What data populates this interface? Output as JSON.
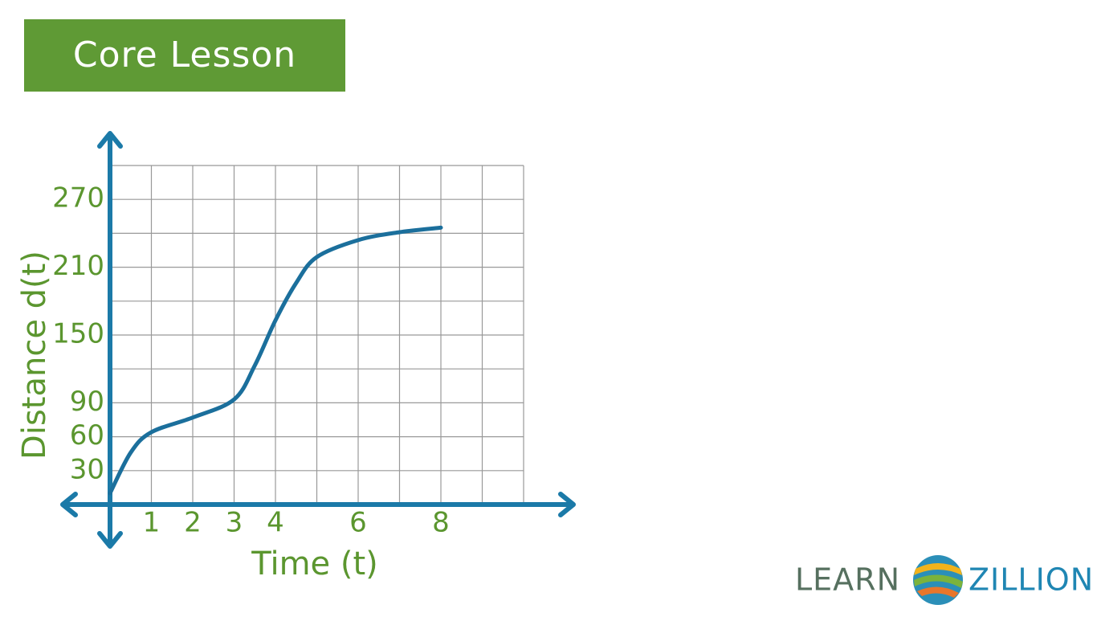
{
  "header": {
    "title": "Core Lesson"
  },
  "chart_data": {
    "type": "line",
    "x_label": "Time (t)",
    "y_label": "Distance d(t)",
    "x": [
      0,
      0.5,
      1,
      2,
      3,
      3.5,
      4,
      4.5,
      5,
      6,
      7,
      8
    ],
    "series": [
      {
        "color": "#1b6f9c",
        "values": [
          10,
          46,
          64,
          77,
          93,
          123,
          163,
          196,
          219,
          234,
          241,
          245
        ]
      }
    ],
    "xlim": [
      0,
      10
    ],
    "ylim": [
      0,
      300
    ],
    "xticks": [
      1,
      2,
      3,
      4,
      6,
      8
    ],
    "yticks": [
      30,
      60,
      90,
      150,
      210,
      270
    ],
    "grid": true
  },
  "logo": {
    "left": "LEARN",
    "right": "ZILLION"
  }
}
